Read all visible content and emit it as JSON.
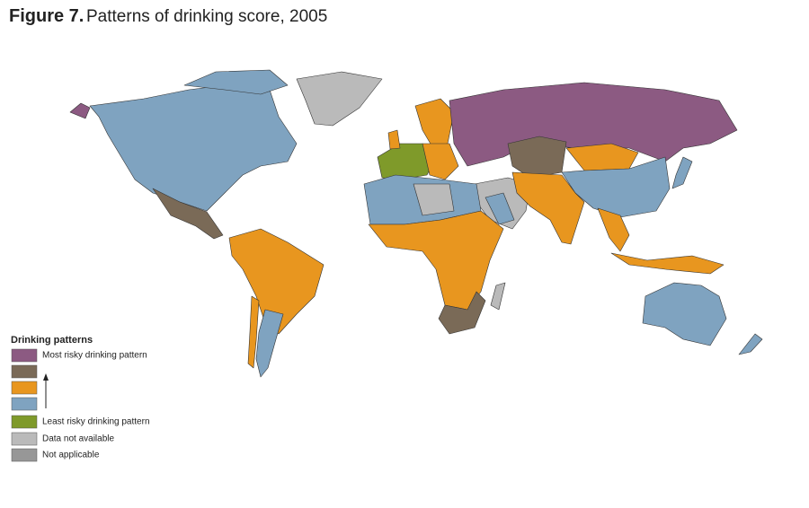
{
  "title_label": "Figure 7.",
  "title": "Patterns of drinking score, 2005",
  "legend": {
    "title": "Drinking patterns",
    "items": [
      {
        "color": "#8c5a82",
        "label": "Most risky drinking pattern"
      },
      {
        "color": "#7a6a57"
      },
      {
        "color": "#e8961f"
      },
      {
        "color": "#7fa3c0"
      },
      {
        "color": "#7f9a2a",
        "label": "Least risky drinking pattern"
      },
      {
        "color": "#bababa",
        "label": "Data not available"
      },
      {
        "color": "#979797",
        "label": "Not applicable"
      }
    ]
  }
}
